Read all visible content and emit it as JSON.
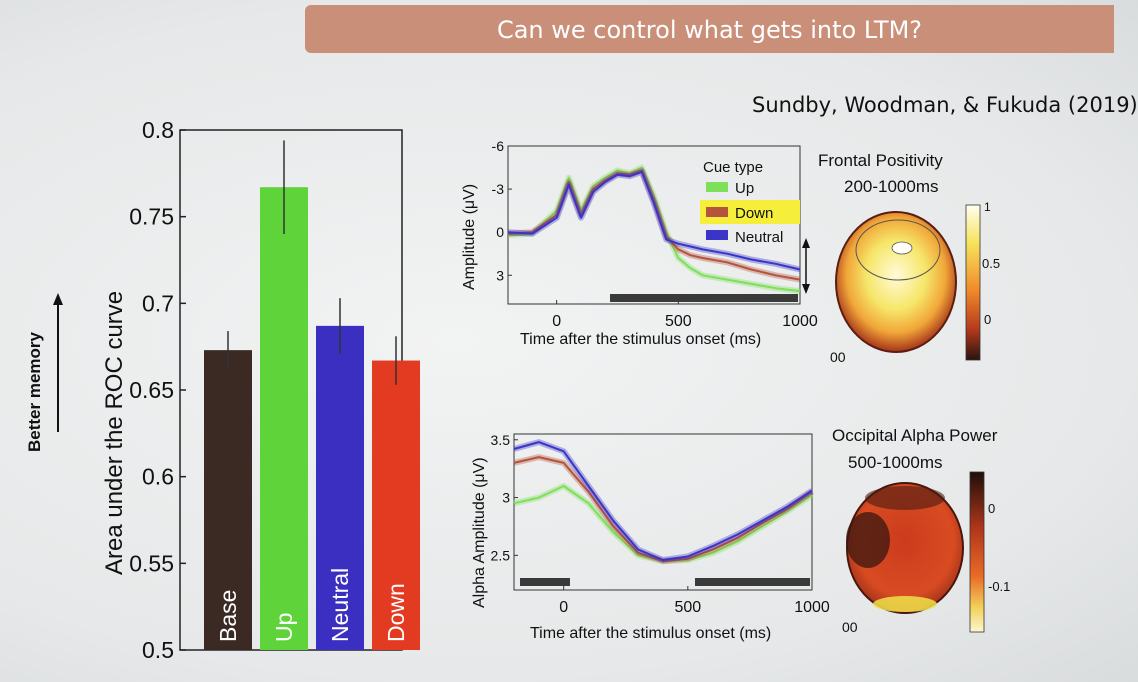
{
  "slide": {
    "title": "Can we control what gets into LTM?",
    "citation": "Sundby, Woodman, & Fukuda (2019)",
    "side_label": "Better memory"
  },
  "chart_data": [
    {
      "type": "bar",
      "ylabel": "Area under the ROC curve",
      "ylim": [
        0.5,
        0.8
      ],
      "yticks": [
        "0.5",
        "0.55",
        "0.6",
        "0.65",
        "0.7",
        "0.75",
        "0.8"
      ],
      "categories": [
        "Base",
        "Up",
        "Neutral",
        "Down"
      ],
      "values": [
        0.673,
        0.767,
        0.687,
        0.667
      ],
      "errors": [
        0.011,
        0.027,
        0.016,
        0.014
      ],
      "colors": [
        "#3b2a24",
        "#5fd33a",
        "#3a2fc0",
        "#e33a22"
      ]
    },
    {
      "type": "line",
      "ylabel": "Amplitude (μV)",
      "xlabel": "Time after the stimulus onset (ms)",
      "xlim": [
        -200,
        1000
      ],
      "ylim": [
        -6,
        5
      ],
      "y_reversed": true,
      "xticks": [
        "0",
        "500",
        "1000"
      ],
      "yticks": [
        "-6",
        "-3",
        "0",
        "3"
      ],
      "legend_title": "Cue type",
      "legend_position": "top-right",
      "x": [
        -200,
        -100,
        0,
        50,
        100,
        150,
        200,
        250,
        300,
        350,
        400,
        450,
        500,
        550,
        600,
        700,
        800,
        900,
        1000
      ],
      "series": [
        {
          "name": "Up",
          "color": "#7ee05a",
          "values": [
            0.2,
            0.1,
            -1.5,
            -3.8,
            -1.5,
            -3.2,
            -3.8,
            -4.3,
            -4.1,
            -4.5,
            -2.5,
            0,
            1.8,
            2.5,
            3.0,
            3.3,
            3.6,
            3.9,
            4.1
          ]
        },
        {
          "name": "Down",
          "color": "#b5533d",
          "values": [
            0.1,
            0.0,
            -1.2,
            -3.5,
            -1.2,
            -3.0,
            -3.6,
            -4.1,
            -4.0,
            -4.3,
            -2.2,
            0.3,
            1.2,
            1.6,
            1.8,
            2.1,
            2.6,
            3.0,
            3.3
          ]
        },
        {
          "name": "Neutral",
          "color": "#3a35c8",
          "values": [
            0.0,
            0.1,
            -1.0,
            -3.3,
            -1.0,
            -2.8,
            -3.5,
            -4.0,
            -3.9,
            -4.2,
            -2.0,
            0.5,
            0.8,
            1.0,
            1.2,
            1.5,
            1.9,
            2.2,
            2.6
          ]
        }
      ]
    },
    {
      "type": "heatmap",
      "title": "Frontal Positivity",
      "subtitle": "200-1000ms",
      "colorbar_ticks": [
        "1",
        "0.5",
        "0"
      ],
      "corner_label": "00"
    },
    {
      "type": "line",
      "ylabel": "Alpha Amplitude (μV)",
      "xlabel": "Time after the stimulus onset (ms)",
      "xlim": [
        -200,
        1000
      ],
      "ylim": [
        2.2,
        3.55
      ],
      "xticks": [
        "0",
        "500",
        "1000"
      ],
      "yticks": [
        "2.5",
        "3",
        "3.5"
      ],
      "x": [
        -200,
        -100,
        0,
        100,
        200,
        300,
        400,
        500,
        600,
        700,
        800,
        900,
        1000
      ],
      "series": [
        {
          "name": "Up",
          "color": "#7ee05a",
          "values": [
            2.95,
            3.0,
            3.1,
            2.95,
            2.7,
            2.5,
            2.45,
            2.46,
            2.52,
            2.62,
            2.75,
            2.88,
            3.02
          ]
        },
        {
          "name": "Down",
          "color": "#b5533d",
          "values": [
            3.3,
            3.35,
            3.3,
            3.05,
            2.75,
            2.52,
            2.45,
            2.47,
            2.55,
            2.65,
            2.78,
            2.9,
            3.05
          ]
        },
        {
          "name": "Neutral",
          "color": "#3a35c8",
          "values": [
            3.42,
            3.48,
            3.4,
            3.1,
            2.8,
            2.55,
            2.46,
            2.49,
            2.58,
            2.68,
            2.8,
            2.92,
            3.06
          ]
        }
      ]
    },
    {
      "type": "heatmap",
      "title": "Occipital Alpha Power",
      "subtitle": "500-1000ms",
      "colorbar_ticks": [
        "0",
        "-0.1"
      ],
      "corner_label": "00"
    }
  ]
}
